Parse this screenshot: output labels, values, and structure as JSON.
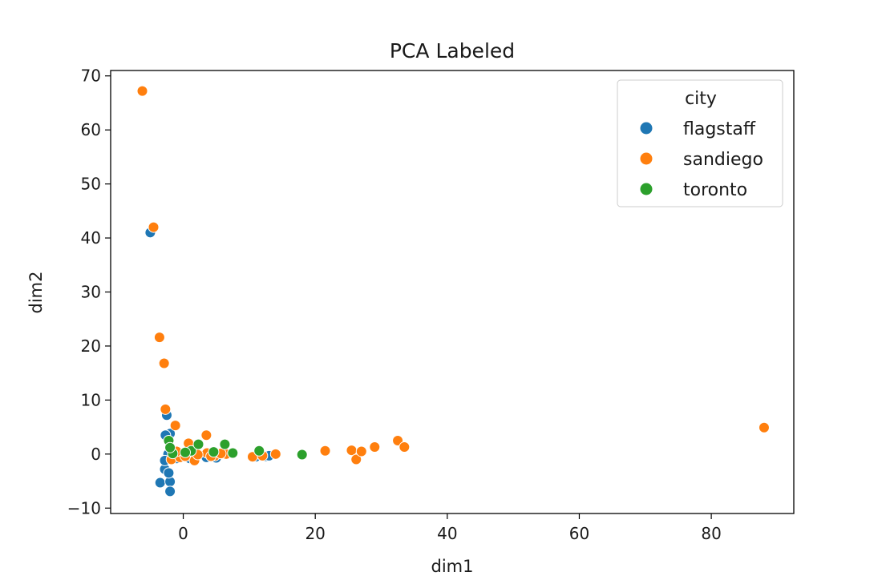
{
  "chart_data": {
    "type": "scatter",
    "title": "PCA Labeled",
    "xlabel": "dim1",
    "ylabel": "dim2",
    "xlim": [
      -11,
      92.5
    ],
    "ylim": [
      -11,
      71
    ],
    "xticks": [
      0,
      20,
      40,
      60,
      80
    ],
    "yticks": [
      -10,
      0,
      10,
      20,
      30,
      40,
      50,
      60,
      70
    ],
    "xtick_labels": [
      "0",
      "20",
      "40",
      "60",
      "80"
    ],
    "ytick_labels": [
      "−10",
      "0",
      "10",
      "20",
      "30",
      "40",
      "50",
      "60",
      "70"
    ],
    "grid": false,
    "legend": {
      "title": "city",
      "placement": "top-right"
    },
    "series": [
      {
        "name": "flagstaff",
        "color": "#1f77b4",
        "points": [
          [
            -5,
            41
          ],
          [
            -2.5,
            7.2
          ],
          [
            -2,
            3.8
          ],
          [
            -2.7,
            3.5
          ],
          [
            -2.3,
            0
          ],
          [
            -2.8,
            -2.8
          ],
          [
            -3.5,
            -5.3
          ],
          [
            -2,
            -5.1
          ],
          [
            -2,
            -6.9
          ],
          [
            -2.2,
            -3.5
          ],
          [
            -1.5,
            -0.5
          ],
          [
            -2.8,
            -1.2
          ],
          [
            -1,
            -0.8
          ],
          [
            0,
            -0.5
          ],
          [
            1,
            -0.8
          ],
          [
            3.5,
            -0.6
          ],
          [
            5,
            -0.7
          ],
          [
            11,
            -0.5
          ],
          [
            12.5,
            -0.4
          ],
          [
            13,
            -0.3
          ],
          [
            -1.8,
            1
          ],
          [
            -1.2,
            0.2
          ]
        ]
      },
      {
        "name": "sandiego",
        "color": "#ff7f0e",
        "points": [
          [
            -6.2,
            67.2
          ],
          [
            -4.5,
            42
          ],
          [
            -3.6,
            21.6
          ],
          [
            -2.9,
            16.8
          ],
          [
            -2.7,
            8.3
          ],
          [
            -1.2,
            5.3
          ],
          [
            0.8,
            2
          ],
          [
            3.5,
            3.5
          ],
          [
            -1.5,
            -0.3
          ],
          [
            -1.8,
            -1
          ],
          [
            1.7,
            -1.2
          ],
          [
            3.6,
            0.2
          ],
          [
            4.8,
            -0.3
          ],
          [
            6.5,
            0
          ],
          [
            10.5,
            -0.5
          ],
          [
            12,
            -0.3
          ],
          [
            14,
            0
          ],
          [
            21.5,
            0.6
          ],
          [
            25.5,
            0.7
          ],
          [
            26.2,
            -1
          ],
          [
            27,
            0.5
          ],
          [
            29,
            1.3
          ],
          [
            32.5,
            2.5
          ],
          [
            33.5,
            1.3
          ],
          [
            88,
            4.9
          ],
          [
            -0.5,
            -0.6
          ],
          [
            0.3,
            -0.4
          ],
          [
            2.2,
            -0.1
          ],
          [
            5.7,
            0.1
          ],
          [
            4.2,
            -0.4
          ],
          [
            -1,
            0.5
          ]
        ]
      },
      {
        "name": "toronto",
        "color": "#2ca02c",
        "points": [
          [
            -2.2,
            2.5
          ],
          [
            1.2,
            0.6
          ],
          [
            2.3,
            1.8
          ],
          [
            6.3,
            1.8
          ],
          [
            11.5,
            0.6
          ],
          [
            18,
            -0.1
          ],
          [
            -1.6,
            0.1
          ],
          [
            0.3,
            0.3
          ],
          [
            4.6,
            0.4
          ],
          [
            7.5,
            0.2
          ],
          [
            -2,
            1.2
          ]
        ]
      }
    ]
  }
}
